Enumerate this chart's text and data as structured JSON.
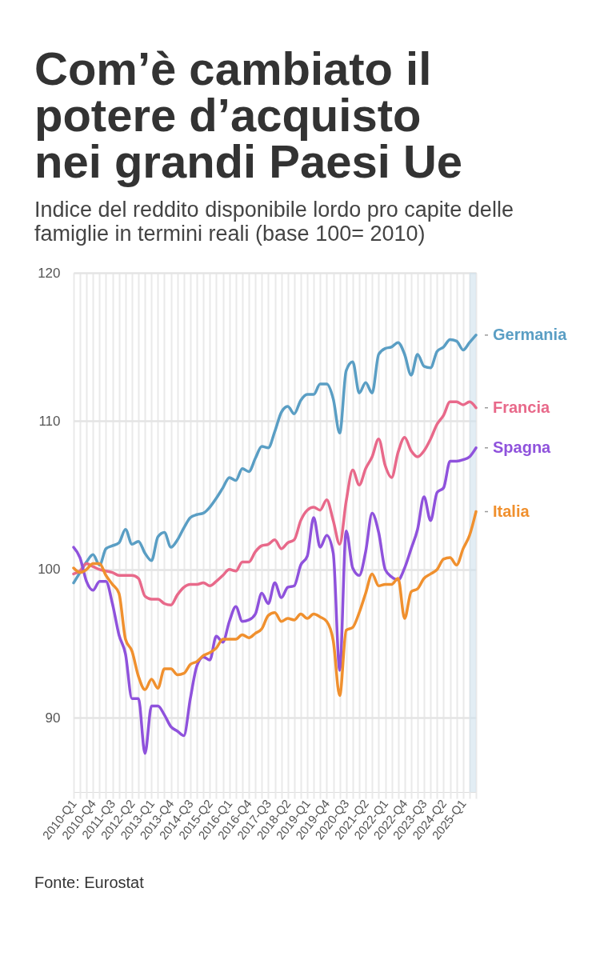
{
  "chart_data": {
    "type": "line",
    "title": "Com’è cambiato il potere d’acquisto nei grandi Paesi Ue",
    "subtitle": "Indice del reddito disponibile lordo pro capite delle famiglie in termini reali (base 100= 2010)",
    "annotations": [
      "Fonte: Eurostat"
    ],
    "x": [
      "2010-01",
      "2010-04",
      "2010-07",
      "2010-10",
      "2011-01",
      "2011-04",
      "2011-07",
      "2011-10",
      "2012-01",
      "2012-04",
      "2012-07",
      "2012-10",
      "2013-01",
      "2013-04",
      "2013-07",
      "2013-10",
      "2014-01",
      "2014-04",
      "2014-07",
      "2014-10",
      "2015-01",
      "2015-04",
      "2015-07",
      "2015-10",
      "2016-01",
      "2016-04",
      "2016-07",
      "2016-10",
      "2017-01",
      "2017-04",
      "2017-07",
      "2017-10",
      "2018-01",
      "2018-04",
      "2018-07",
      "2018-10",
      "2019-01",
      "2019-04",
      "2019-07",
      "2019-10",
      "2020-01",
      "2020-04",
      "2020-07",
      "2020-10",
      "2021-01",
      "2021-04",
      "2021-07",
      "2021-10",
      "2022-01",
      "2022-04",
      "2022-07",
      "2022-10",
      "2023-01",
      "2023-04",
      "2023-07",
      "2023-10",
      "2024-01",
      "2024-04",
      "2024-07",
      "2024-10",
      "2025-01",
      "2025-04",
      "2025-07"
    ],
    "series": [
      {
        "name": "Germania",
        "color": "#5a9ec4",
        "values": [
          99.1,
          99.8,
          100.5,
          101.0,
          100.3,
          101.4,
          101.6,
          101.8,
          102.7,
          101.7,
          101.9,
          101.1,
          100.6,
          102.2,
          102.5,
          101.5,
          102.0,
          102.8,
          103.5,
          103.7,
          103.8,
          104.2,
          104.8,
          105.5,
          106.2,
          106.0,
          106.8,
          106.6,
          107.5,
          108.3,
          108.2,
          109.3,
          110.6,
          111.0,
          110.5,
          111.4,
          111.8,
          111.8,
          112.5,
          112.5,
          111.5,
          109.2,
          113.4,
          114.0,
          111.9,
          112.6,
          111.9,
          114.5,
          114.9,
          115.0,
          115.3,
          114.5,
          113.1,
          114.5,
          113.7,
          113.6,
          114.7,
          115.0,
          115.5,
          115.4,
          114.8,
          115.3,
          115.8
        ]
      },
      {
        "name": "Francia",
        "color": "#e8698a",
        "values": [
          99.7,
          99.9,
          100.4,
          100.2,
          100.0,
          99.9,
          99.8,
          99.6,
          99.6,
          99.6,
          99.4,
          98.2,
          98.0,
          98.0,
          97.7,
          97.6,
          98.3,
          98.8,
          99.0,
          99.0,
          99.1,
          98.9,
          99.2,
          99.6,
          100.0,
          99.9,
          100.5,
          100.5,
          101.2,
          101.6,
          101.7,
          102.0,
          101.4,
          101.8,
          102.0,
          103.3,
          104.0,
          104.2,
          104.0,
          104.7,
          103.3,
          101.7,
          104.6,
          106.7,
          105.7,
          106.8,
          107.6,
          108.8,
          107.0,
          106.2,
          107.9,
          108.9,
          108.0,
          107.6,
          108.0,
          108.8,
          109.8,
          110.4,
          111.3,
          111.3,
          111.1,
          111.3,
          110.9
        ]
      },
      {
        "name": "Spagna",
        "color": "#8f52dc",
        "values": [
          101.5,
          100.8,
          99.2,
          98.6,
          99.2,
          99.2,
          97.7,
          95.6,
          94.3,
          91.3,
          91.3,
          87.6,
          90.8,
          90.8,
          90.2,
          89.4,
          89.1,
          88.8,
          91.3,
          93.5,
          94.1,
          93.9,
          95.5,
          95.1,
          96.5,
          97.5,
          96.5,
          96.6,
          97.0,
          98.4,
          97.7,
          99.1,
          98.1,
          98.8,
          98.9,
          100.3,
          100.9,
          103.5,
          101.5,
          102.3,
          101.1,
          93.2,
          102.6,
          100.1,
          99.6,
          101.2,
          103.8,
          102.5,
          100.0,
          99.5,
          99.3,
          100.1,
          101.4,
          102.7,
          104.9,
          103.3,
          105.2,
          105.5,
          107.3,
          107.3,
          107.4,
          107.6,
          108.2
        ]
      },
      {
        "name": "Italia",
        "color": "#f0902e",
        "values": [
          100.1,
          99.8,
          100.0,
          100.4,
          100.4,
          99.6,
          99.0,
          98.4,
          95.3,
          94.5,
          92.8,
          91.9,
          92.6,
          92.0,
          93.3,
          93.3,
          92.9,
          93.0,
          93.6,
          93.8,
          94.2,
          94.4,
          94.7,
          95.3,
          95.3,
          95.3,
          95.6,
          95.4,
          95.7,
          96.0,
          96.9,
          97.1,
          96.5,
          96.7,
          96.6,
          97.0,
          96.7,
          97.0,
          96.8,
          96.5,
          95.2,
          91.5,
          95.9,
          96.1,
          97.1,
          98.4,
          99.7,
          98.9,
          99.0,
          99.0,
          99.4,
          96.7,
          98.5,
          98.7,
          99.4,
          99.7,
          100.0,
          100.7,
          100.8,
          100.3,
          101.4,
          102.3,
          103.9
        ]
      }
    ],
    "xlim": [
      "2010-01",
      "2025-07"
    ],
    "xticks": [
      {
        "value": "2010-01",
        "label": "2010-Q1"
      },
      {
        "value": "2010-04",
        "label": null
      },
      {
        "value": "2010-07",
        "label": null
      },
      {
        "value": "2010-10",
        "label": "2010-Q4"
      },
      {
        "value": "2011-01",
        "label": null
      },
      {
        "value": "2011-04",
        "label": null
      },
      {
        "value": "2011-07",
        "label": "2011-Q3"
      },
      {
        "value": "2011-10",
        "label": null
      },
      {
        "value": "2012-01",
        "label": null
      },
      {
        "value": "2012-04",
        "label": "2012-Q2"
      },
      {
        "value": "2012-07",
        "label": null
      },
      {
        "value": "2012-10",
        "label": null
      },
      {
        "value": "2013-01",
        "label": "2013-Q1"
      },
      {
        "value": "2013-04",
        "label": null
      },
      {
        "value": "2013-07",
        "label": null
      },
      {
        "value": "2013-10",
        "label": "2013-Q4"
      },
      {
        "value": "2014-01",
        "label": null
      },
      {
        "value": "2014-04",
        "label": null
      },
      {
        "value": "2014-07",
        "label": "2014-Q3"
      },
      {
        "value": "2014-10",
        "label": null
      },
      {
        "value": "2015-01",
        "label": null
      },
      {
        "value": "2015-04",
        "label": "2015-Q2"
      },
      {
        "value": "2015-07",
        "label": null
      },
      {
        "value": "2015-10",
        "label": null
      },
      {
        "value": "2016-01",
        "label": "2016-Q1"
      },
      {
        "value": "2016-04",
        "label": null
      },
      {
        "value": "2016-07",
        "label": null
      },
      {
        "value": "2016-10",
        "label": "2016-Q4"
      },
      {
        "value": "2017-01",
        "label": null
      },
      {
        "value": "2017-04",
        "label": null
      },
      {
        "value": "2017-07",
        "label": "2017-Q3"
      },
      {
        "value": "2017-10",
        "label": null
      },
      {
        "value": "2018-01",
        "label": null
      },
      {
        "value": "2018-04",
        "label": "2018-Q2"
      },
      {
        "value": "2018-07",
        "label": null
      },
      {
        "value": "2018-10",
        "label": null
      },
      {
        "value": "2019-01",
        "label": "2019-Q1"
      },
      {
        "value": "2019-04",
        "label": null
      },
      {
        "value": "2019-07",
        "label": null
      },
      {
        "value": "2019-10",
        "label": "2019-Q4"
      },
      {
        "value": "2020-01",
        "label": null
      },
      {
        "value": "2020-04",
        "label": null
      },
      {
        "value": "2020-07",
        "label": "2020-Q3"
      },
      {
        "value": "2020-10",
        "label": null
      },
      {
        "value": "2021-01",
        "label": null
      },
      {
        "value": "2021-04",
        "label": "2021-Q2"
      },
      {
        "value": "2021-07",
        "label": null
      },
      {
        "value": "2021-10",
        "label": null
      },
      {
        "value": "2022-01",
        "label": "2022-Q1"
      },
      {
        "value": "2022-04",
        "label": null
      },
      {
        "value": "2022-07",
        "label": null
      },
      {
        "value": "2022-10",
        "label": "2022-Q4"
      },
      {
        "value": "2023-01",
        "label": null
      },
      {
        "value": "2023-04",
        "label": null
      },
      {
        "value": "2023-07",
        "label": "2023-Q3"
      },
      {
        "value": "2023-10",
        "label": null
      },
      {
        "value": "2024-01",
        "label": null
      },
      {
        "value": "2024-04",
        "label": "2024-Q2"
      },
      {
        "value": "2024-07",
        "label": null
      },
      {
        "value": "2024-10",
        "label": null
      },
      {
        "value": "2025-01",
        "label": "2025-Q1"
      },
      {
        "value": "2025-04",
        "label": null
      },
      {
        "value": "2025-07",
        "label": null
      }
    ],
    "ylim": [
      85,
      120
    ],
    "yticks": [
      90,
      100,
      110,
      120
    ],
    "bands": [
      {
        "axis": "x",
        "from": "2025-04",
        "to": "2025-07",
        "color": "#cfe1ec"
      }
    ],
    "grid": true
  }
}
